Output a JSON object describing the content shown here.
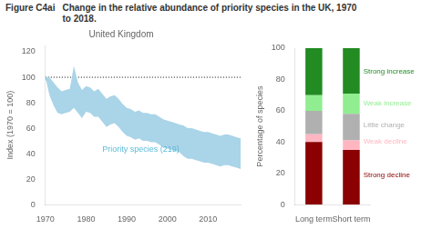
{
  "title": "Figure C4ai",
  "subtitle": "Change in the relative abundance of priority species in the UK, 1970\nto 2018.",
  "chart_data": [
    {
      "type": "line",
      "title": "United Kingdom",
      "y_label": "Index (1970 = 100)",
      "x": [
        1970,
        1971,
        1972,
        1973,
        1974,
        1975,
        1976,
        1977,
        1978,
        1979,
        1980,
        1981,
        1982,
        1983,
        1984,
        1985,
        1986,
        1987,
        1988,
        1989,
        1990,
        1991,
        1992,
        1993,
        1994,
        1995,
        1996,
        1997,
        1998,
        1999,
        2000,
        2001,
        2002,
        2003,
        2004,
        2005,
        2006,
        2007,
        2008,
        2009,
        2010,
        2011,
        2012,
        2013,
        2014,
        2015,
        2016,
        2017,
        2018
      ],
      "series": [
        {
          "type": "band",
          "color": "#aad4e8",
          "upper": [
            100,
            100,
            96,
            92,
            89,
            90,
            91,
            109,
            96,
            90,
            93,
            92,
            89,
            91,
            87,
            83,
            85,
            86,
            83,
            79,
            76,
            75,
            73,
            74,
            72,
            72,
            71,
            71,
            69,
            67,
            66,
            65,
            64,
            63,
            62,
            60,
            60,
            59,
            58,
            57,
            57,
            56,
            55,
            54,
            55,
            55,
            54,
            53,
            52
          ],
          "lower": [
            100,
            86,
            78,
            72,
            71,
            72,
            73,
            76,
            72,
            68,
            73,
            72,
            69,
            69,
            65,
            61,
            63,
            64,
            61,
            57,
            54,
            53,
            51,
            52,
            50,
            50,
            49,
            49,
            47,
            45,
            44,
            43,
            42,
            41,
            38,
            36,
            36,
            35,
            34,
            33,
            33,
            32,
            31,
            30,
            31,
            31,
            30,
            29,
            28
          ]
        },
        {
          "type": "line",
          "color": "#2288bb",
          "line_style": "dashed",
          "values": [
            100,
            93,
            87,
            82,
            80,
            81,
            82,
            88,
            84,
            79,
            83,
            82,
            79,
            80,
            76,
            72,
            74,
            75,
            72,
            68,
            65,
            64,
            62,
            63,
            61,
            61,
            60,
            60,
            58,
            56,
            55,
            54,
            53,
            52,
            50,
            48,
            48,
            47,
            46,
            45,
            45,
            44,
            43,
            42,
            43,
            43,
            42,
            41,
            40
          ]
        }
      ],
      "annotations": [
        {
          "y": 100,
          "line_style": "dotted",
          "color": "#000000"
        },
        {
          "text": "Priority species (219)",
          "x": 1984,
          "y": 43,
          "color": "#5bbbd8"
        }
      ],
      "xlim": [
        1970,
        2018
      ],
      "xticks": [
        1970,
        1980,
        1990,
        2000,
        2010
      ],
      "ylim": [
        0,
        125
      ],
      "yticks": [
        0,
        20,
        40,
        60,
        80,
        100,
        120
      ],
      "grid": false
    },
    {
      "type": "bar",
      "stacked": true,
      "y_label": "Percentage of species",
      "categories": [
        "Long term",
        "Short term"
      ],
      "series": [
        {
          "name": "Strong decline",
          "color": "#8B0000",
          "values": [
            40,
            35
          ]
        },
        {
          "name": "Weak decline",
          "color": "#FFB6C1",
          "values": [
            5,
            6
          ]
        },
        {
          "name": "Little change",
          "color": "#B0B0B0",
          "values": [
            15,
            17
          ]
        },
        {
          "name": "Weak increase",
          "color": "#90EE90",
          "values": [
            10,
            13
          ]
        },
        {
          "name": "Strong increase",
          "color": "#228B22",
          "values": [
            30,
            29
          ]
        }
      ],
      "ylim": [
        0,
        100
      ],
      "yticks": [
        0,
        20,
        40,
        60,
        80,
        100
      ],
      "grid": false
    }
  ]
}
